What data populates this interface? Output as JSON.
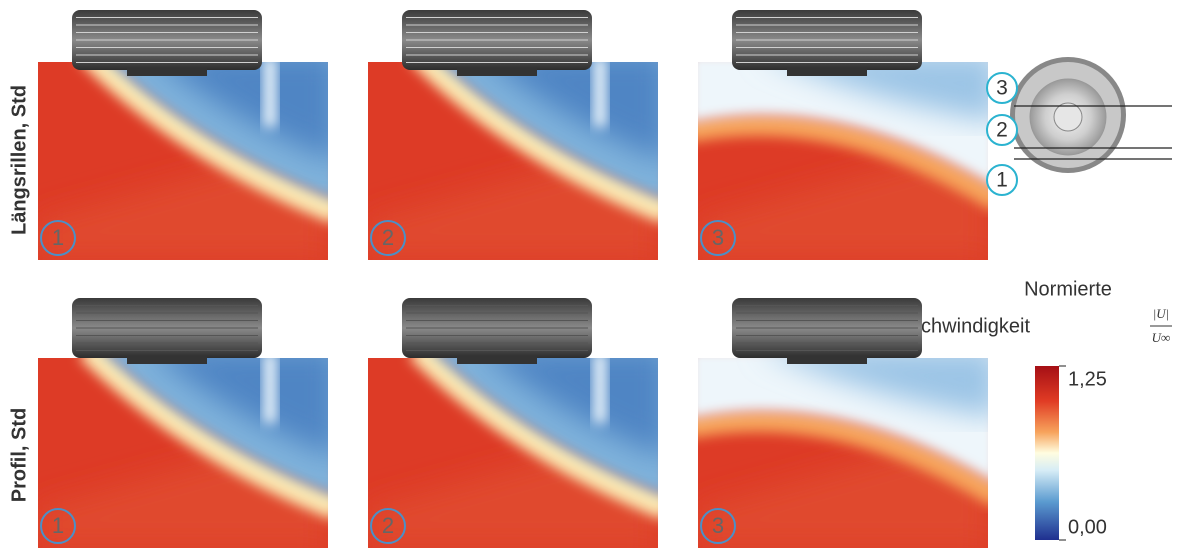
{
  "row_labels": [
    "Längsrillen, Std",
    "Profil, Std"
  ],
  "panel_labels": [
    "1",
    "2",
    "3"
  ],
  "colorbar": {
    "title_line1": "Normierte",
    "title_line2": "Geschwindigkeit",
    "fraction_numerator": "|U|",
    "fraction_denominator": "U∞",
    "max_label": "1,25",
    "min_label": "0,00"
  },
  "diagram": {
    "labels": [
      "3",
      "2",
      "1"
    ]
  }
}
